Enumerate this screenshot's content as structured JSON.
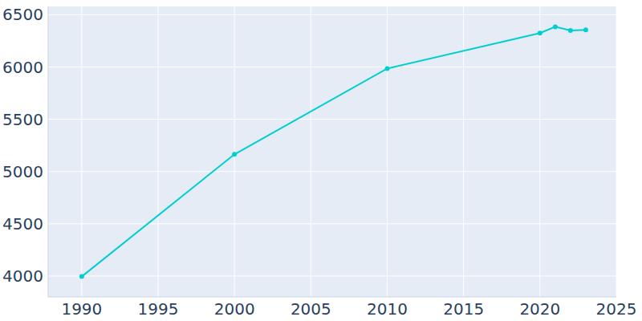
{
  "chart_data": {
    "type": "line",
    "x": [
      1990,
      2000,
      2010,
      2020,
      2021,
      2022,
      2023
    ],
    "values": [
      3995,
      5165,
      5985,
      6325,
      6385,
      6350,
      6355
    ],
    "color": "#00ced1",
    "marker": "circle",
    "xlim": [
      1987.8,
      2025
    ],
    "ylim": [
      3800,
      6580
    ],
    "xticks": [
      1990,
      1995,
      2000,
      2005,
      2010,
      2015,
      2020,
      2025
    ],
    "yticks": [
      4000,
      4500,
      5000,
      5500,
      6000,
      6500
    ],
    "grid": true
  }
}
